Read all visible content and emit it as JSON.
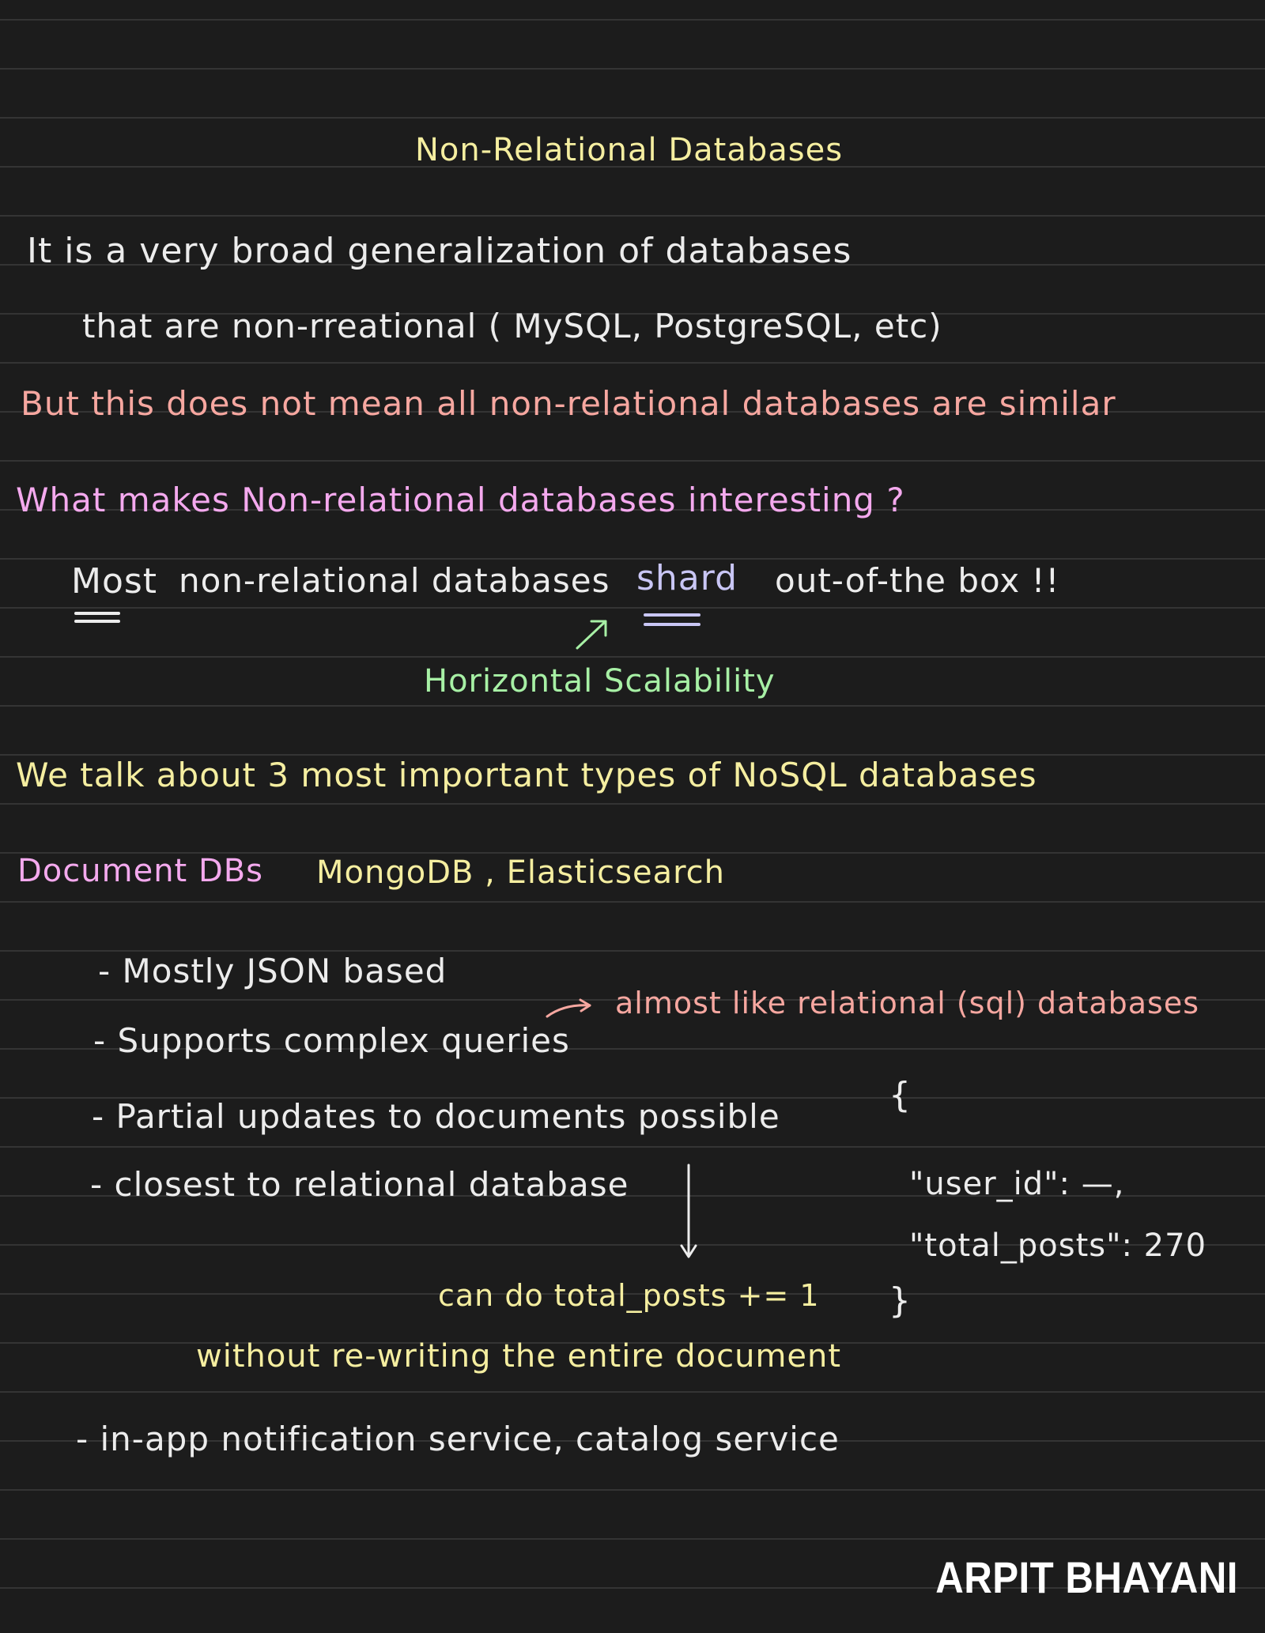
{
  "title": "Non-Relational Databases",
  "intro": {
    "line1": "It is a very broad generalization of databases",
    "line2": "that are non-rreational ( MySQL, PostgreSQL, etc)",
    "line3": "But this does not mean all non-relational databases are similar"
  },
  "interesting": {
    "question": "What makes Non-relational databases interesting ?",
    "most_label": "Most",
    "statement_mid": "non-relational databases",
    "shard": "shard",
    "statement_end": "out-of-the box !!",
    "annotation": "Horizontal Scalability"
  },
  "types_intro": "We talk about 3 most important types of NoSQL databases",
  "document_dbs": {
    "heading": "Document DBs",
    "examples": "MongoDB , Elasticsearch",
    "bullets": [
      "- Mostly JSON based",
      "- Supports complex queries",
      "- Partial updates to documents possible",
      "- closest to relational database"
    ],
    "side_note": "almost like relational (sql) databases",
    "json_example": {
      "open_brace": "{",
      "line1": "\"user_id\": —,",
      "line2": "\"total_posts\": 270",
      "close_brace": "}"
    },
    "partial_note_1": "can do total_posts += 1",
    "partial_note_2": "without re-writing the entire document",
    "use_cases": "- in-app notification service, catalog service"
  },
  "brand": "ARPIT BHAYANI",
  "colors": {
    "background": "#1c1c1c",
    "yellow": "#f5eea0",
    "white": "#ececec",
    "pink": "#f6a7a0",
    "magenta": "#f4a9ee",
    "green": "#a7f0a5",
    "lavender": "#c9c6f5"
  }
}
